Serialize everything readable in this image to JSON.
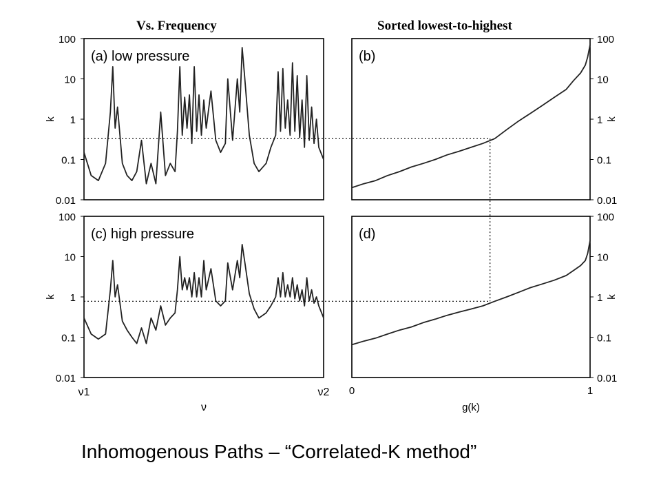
{
  "column_titles": {
    "left": "Vs. Frequency",
    "right": "Sorted lowest-to-highest"
  },
  "caption": "Inhomogenous Paths – “Correlated-K method”",
  "chart_data": [
    {
      "type": "line",
      "panel_label": "(a) low pressure",
      "y_scale": "log",
      "ylim": [
        0.01,
        100
      ],
      "yticks": [
        "100",
        "10",
        "1",
        "0.1",
        "0.01"
      ],
      "ylabel": "k",
      "xlabel": "",
      "xticks": [],
      "series": [
        {
          "x": [
            0,
            0.03,
            0.06,
            0.09,
            0.11,
            0.12,
            0.13,
            0.14,
            0.16,
            0.18,
            0.2,
            0.22,
            0.24,
            0.26,
            0.28,
            0.3,
            0.32,
            0.34,
            0.36,
            0.38,
            0.39,
            0.4,
            0.41,
            0.42,
            0.43,
            0.44,
            0.45,
            0.46,
            0.47,
            0.48,
            0.49,
            0.5,
            0.51,
            0.53,
            0.55,
            0.57,
            0.59,
            0.6,
            0.62,
            0.64,
            0.65,
            0.66,
            0.67,
            0.69,
            0.71,
            0.73,
            0.76,
            0.78,
            0.8,
            0.81,
            0.82,
            0.83,
            0.84,
            0.85,
            0.86,
            0.87,
            0.88,
            0.89,
            0.9,
            0.91,
            0.92,
            0.93,
            0.94,
            0.95,
            0.96,
            0.97,
            0.98,
            1.0
          ],
          "y": [
            0.15,
            0.04,
            0.03,
            0.08,
            1.5,
            20,
            0.6,
            2,
            0.08,
            0.04,
            0.03,
            0.05,
            0.3,
            0.025,
            0.08,
            0.025,
            1.5,
            0.04,
            0.08,
            0.05,
            0.5,
            20,
            0.4,
            3.5,
            0.6,
            4,
            0.25,
            20,
            0.5,
            4,
            0.4,
            3,
            0.6,
            5,
            0.3,
            0.15,
            0.25,
            10,
            0.3,
            10,
            1.5,
            60,
            12,
            0.4,
            0.08,
            0.05,
            0.08,
            0.2,
            0.4,
            15,
            0.5,
            18,
            0.6,
            3,
            0.4,
            25,
            0.5,
            12,
            0.35,
            3,
            0.2,
            12,
            0.3,
            2,
            0.25,
            1,
            0.2,
            0.1
          ]
        }
      ],
      "reference_line_y": 0.33
    },
    {
      "type": "line",
      "panel_label": "(b)",
      "y_scale": "log",
      "ylim": [
        0.01,
        100
      ],
      "yticks": [
        "100",
        "10",
        "1",
        "0.1",
        "0.01"
      ],
      "ylabel": "k",
      "xlabel": "",
      "xticks": [],
      "series": [
        {
          "x": [
            0,
            0.05,
            0.1,
            0.15,
            0.2,
            0.25,
            0.3,
            0.35,
            0.4,
            0.45,
            0.5,
            0.55,
            0.6,
            0.65,
            0.7,
            0.75,
            0.8,
            0.85,
            0.9,
            0.93,
            0.96,
            0.98,
            0.99,
            1.0
          ],
          "y": [
            0.02,
            0.025,
            0.03,
            0.04,
            0.05,
            0.065,
            0.08,
            0.1,
            0.13,
            0.16,
            0.2,
            0.25,
            0.33,
            0.55,
            0.9,
            1.4,
            2.2,
            3.5,
            5.5,
            9,
            14,
            22,
            35,
            70
          ]
        }
      ],
      "reference_x": 0.58
    },
    {
      "type": "line",
      "panel_label": "(c) high pressure",
      "y_scale": "log",
      "ylim": [
        0.01,
        100
      ],
      "yticks": [
        "100",
        "10",
        "1",
        "0.1",
        "0.01"
      ],
      "ylabel": "k",
      "xlabel": "ν",
      "xticks": [
        "ν1",
        "ν2"
      ],
      "series": [
        {
          "x": [
            0,
            0.03,
            0.06,
            0.09,
            0.11,
            0.12,
            0.13,
            0.14,
            0.16,
            0.18,
            0.2,
            0.22,
            0.24,
            0.26,
            0.28,
            0.3,
            0.32,
            0.34,
            0.36,
            0.38,
            0.39,
            0.4,
            0.41,
            0.42,
            0.43,
            0.44,
            0.45,
            0.46,
            0.47,
            0.48,
            0.49,
            0.5,
            0.51,
            0.53,
            0.55,
            0.57,
            0.59,
            0.6,
            0.62,
            0.64,
            0.65,
            0.66,
            0.67,
            0.69,
            0.71,
            0.73,
            0.76,
            0.78,
            0.8,
            0.81,
            0.82,
            0.83,
            0.84,
            0.85,
            0.86,
            0.87,
            0.88,
            0.89,
            0.9,
            0.91,
            0.92,
            0.93,
            0.94,
            0.95,
            0.96,
            0.97,
            0.98,
            1.0
          ],
          "y": [
            0.3,
            0.12,
            0.09,
            0.12,
            1.5,
            8,
            1,
            2,
            0.25,
            0.15,
            0.1,
            0.07,
            0.17,
            0.07,
            0.3,
            0.15,
            0.6,
            0.2,
            0.3,
            0.4,
            1.5,
            10,
            1.5,
            3,
            1.5,
            3,
            1,
            4,
            1,
            3,
            1,
            8,
            1.5,
            5,
            0.8,
            0.6,
            0.8,
            7,
            1.5,
            8,
            3,
            20,
            8,
            1.2,
            0.5,
            0.3,
            0.4,
            0.6,
            1,
            3,
            1,
            4,
            1,
            2,
            1,
            3,
            0.9,
            2,
            0.8,
            1.5,
            0.6,
            3,
            0.8,
            1.5,
            0.7,
            1,
            0.6,
            0.3
          ]
        }
      ],
      "reference_line_y": 0.78
    },
    {
      "type": "line",
      "panel_label": "(d)",
      "y_scale": "log",
      "ylim": [
        0.01,
        100
      ],
      "yticks": [
        "100",
        "10",
        "1",
        "0.1",
        "0.01"
      ],
      "ylabel": "k",
      "xlabel": "g(k)",
      "xticks": [
        "0",
        "1"
      ],
      "series": [
        {
          "x": [
            0,
            0.05,
            0.1,
            0.15,
            0.2,
            0.25,
            0.3,
            0.35,
            0.4,
            0.45,
            0.5,
            0.55,
            0.6,
            0.65,
            0.7,
            0.75,
            0.8,
            0.85,
            0.9,
            0.93,
            0.96,
            0.98,
            0.99,
            1.0
          ],
          "y": [
            0.065,
            0.08,
            0.095,
            0.12,
            0.15,
            0.18,
            0.23,
            0.28,
            0.35,
            0.42,
            0.5,
            0.6,
            0.78,
            1.0,
            1.3,
            1.7,
            2.1,
            2.6,
            3.4,
            4.5,
            6,
            8,
            12,
            25
          ]
        }
      ],
      "reference_x": 0.58
    }
  ]
}
